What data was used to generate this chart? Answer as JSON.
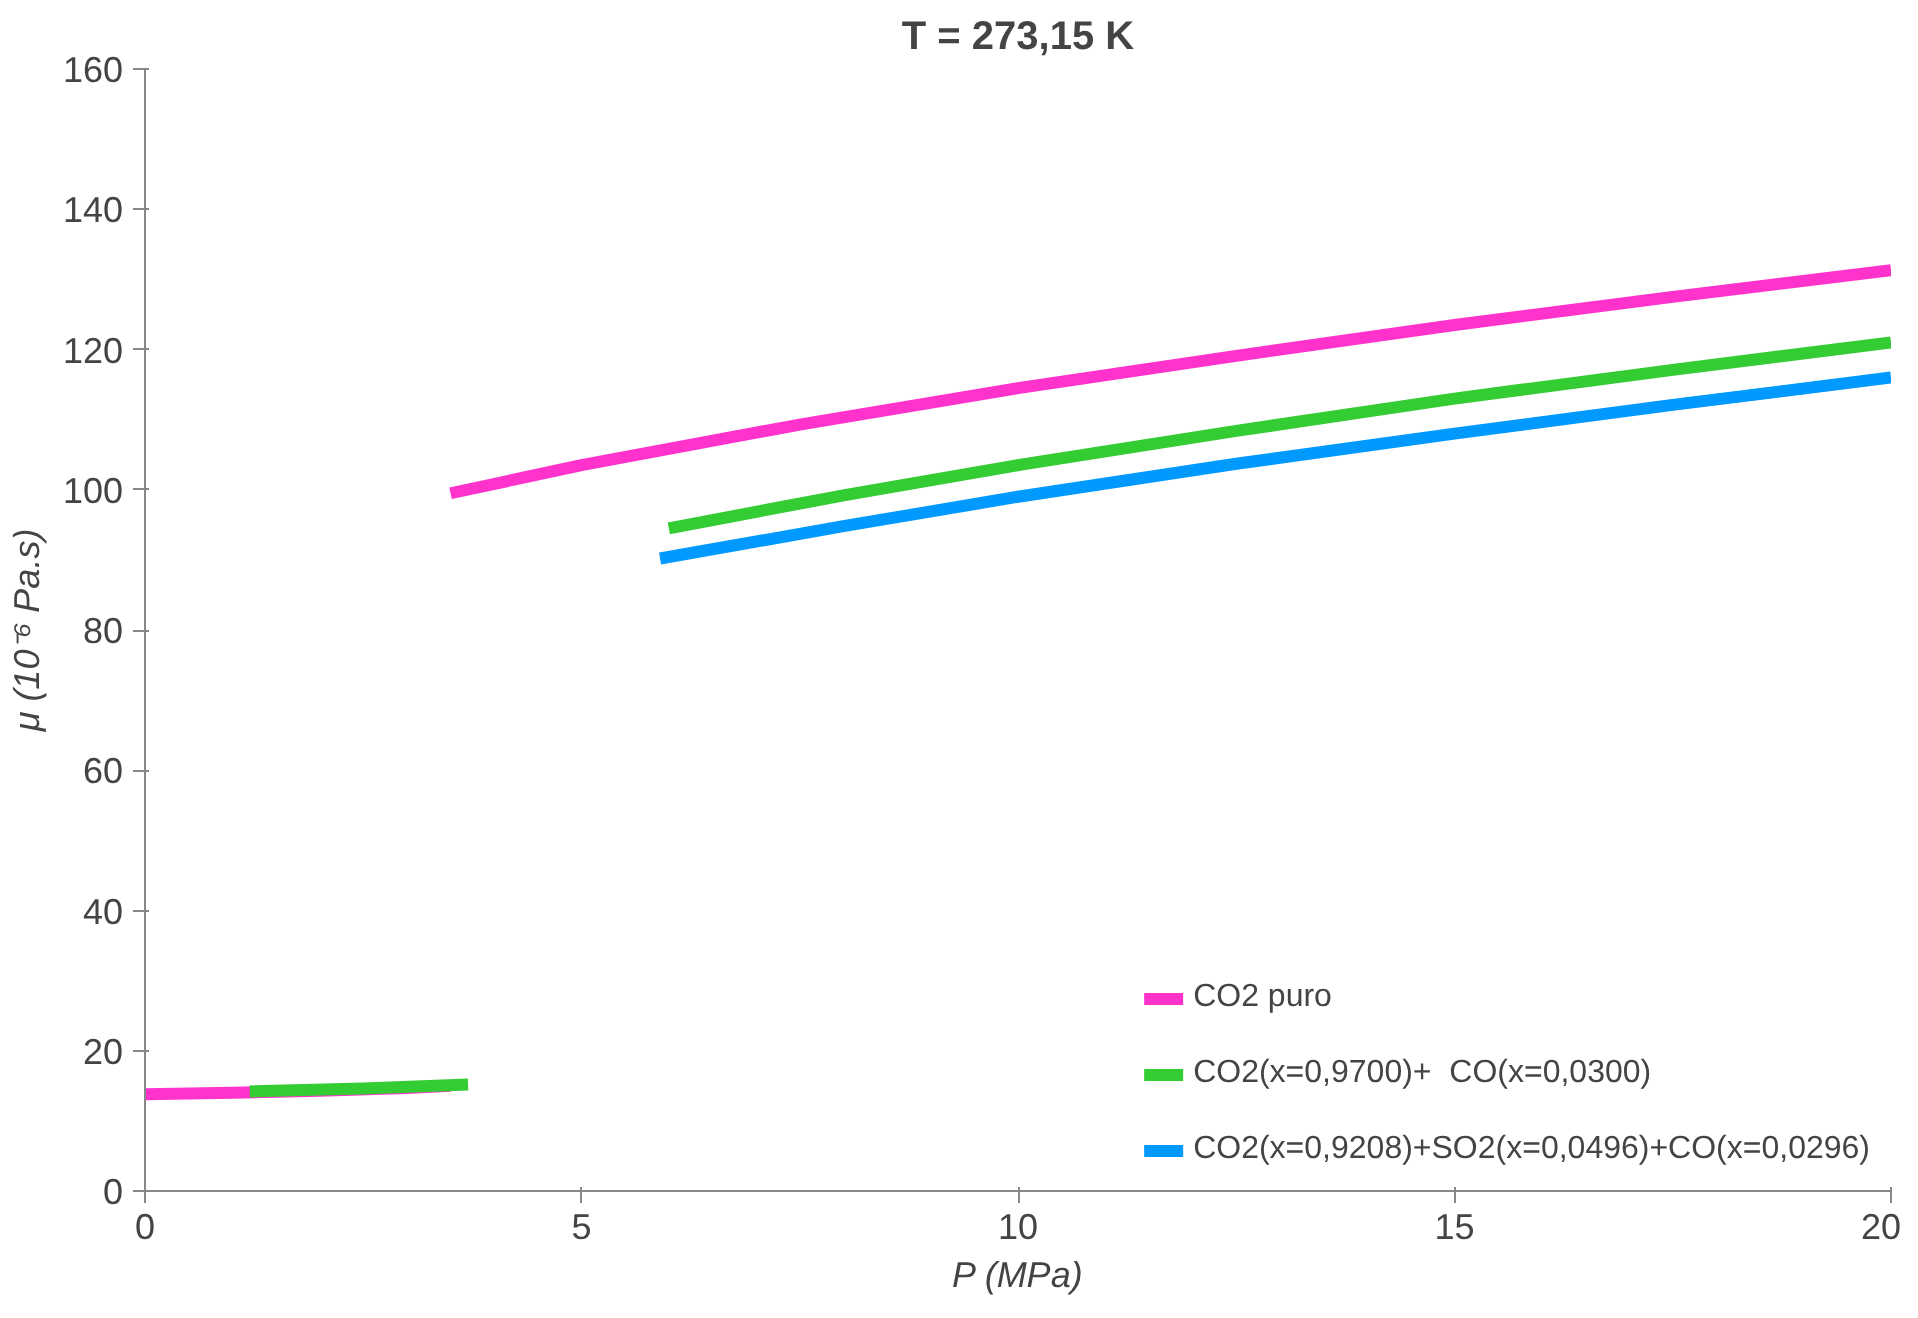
{
  "chart_data": {
    "type": "line",
    "title": "T = 273,15 K",
    "xlabel": "P (MPa)",
    "ylabel": "μ (10⁻⁶ Pa.s)",
    "xlim": [
      0,
      20
    ],
    "xticks": [
      0,
      5,
      10,
      15,
      20
    ],
    "ylim": [
      0,
      160
    ],
    "yticks": [
      0,
      20,
      40,
      60,
      80,
      100,
      120,
      140,
      160
    ],
    "grid": false,
    "legend": "bottom right",
    "marker": "none",
    "line_style": "solid",
    "series": [
      {
        "name": "CO2 puro",
        "color": "#ff33cc",
        "x": [
          0,
          1,
          2,
          3,
          3.5,
          null,
          3.5,
          5,
          7.5,
          10,
          12.5,
          15,
          17.5,
          20
        ],
        "values": [
          13.8,
          14,
          14.3,
          14.7,
          15,
          null,
          99.5,
          103.5,
          109.3,
          114.5,
          119.1,
          123.5,
          127.5,
          131.3
        ]
      },
      {
        "name": "CO2(x=0,9700)+  CO(x=0,0300)",
        "color": "#33cc33",
        "x": [
          1.2,
          2.5,
          3.7,
          null,
          6,
          8,
          10,
          12.5,
          15,
          17.5,
          20
        ],
        "values": [
          14.2,
          14.6,
          15.2,
          null,
          94.5,
          99.2,
          103.5,
          108.4,
          113,
          117.1,
          121
        ]
      },
      {
        "name": "CO2(x=0,9208)+SO2(x=0,0496)+CO(x=0,0296)",
        "color": "#0099ff",
        "x": [
          5.9,
          8,
          10,
          12.5,
          15,
          17.5,
          20
        ],
        "values": [
          90.2,
          94.8,
          99,
          103.7,
          108,
          112.1,
          116
        ]
      }
    ]
  }
}
